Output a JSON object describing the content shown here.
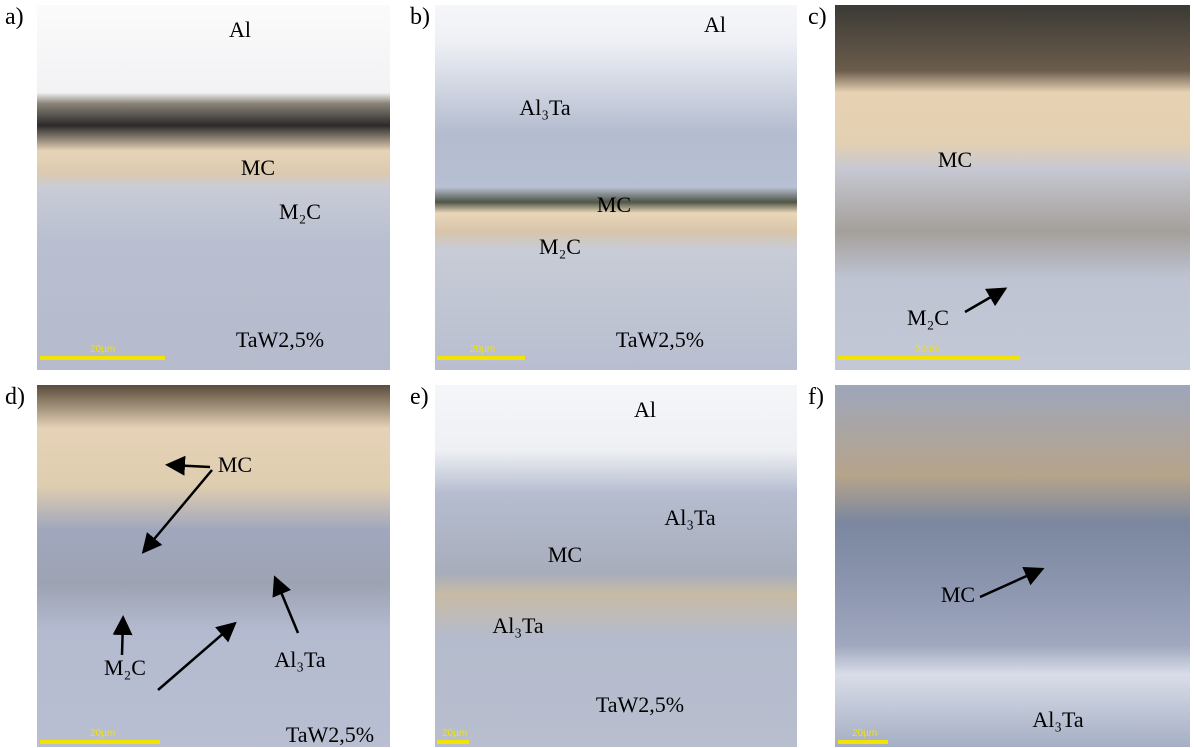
{
  "panels": [
    {
      "label": "a)",
      "texts": [
        "Al",
        "MC",
        "M₂C",
        "TaW2,5%"
      ],
      "scale": "20µm"
    },
    {
      "label": "b)",
      "texts": [
        "Al",
        "Al₃Ta",
        "MC",
        "M₂C",
        "TaW2,5%"
      ],
      "scale": "20µm"
    },
    {
      "label": "c)",
      "texts": [
        "MC",
        "M₂C"
      ],
      "scale": "20µm"
    },
    {
      "label": "d)",
      "texts": [
        "MC",
        "M₂C",
        "Al₃Ta",
        "TaW2,5%"
      ],
      "scale": "20µm"
    },
    {
      "label": "e)",
      "texts": [
        "Al",
        "Al₃Ta",
        "MC",
        "Al₃Ta",
        "TaW2,5%"
      ],
      "scale": "20µm"
    },
    {
      "label": "f)",
      "texts": [
        "MC",
        "Al₃Ta"
      ],
      "scale": "20µm"
    }
  ]
}
